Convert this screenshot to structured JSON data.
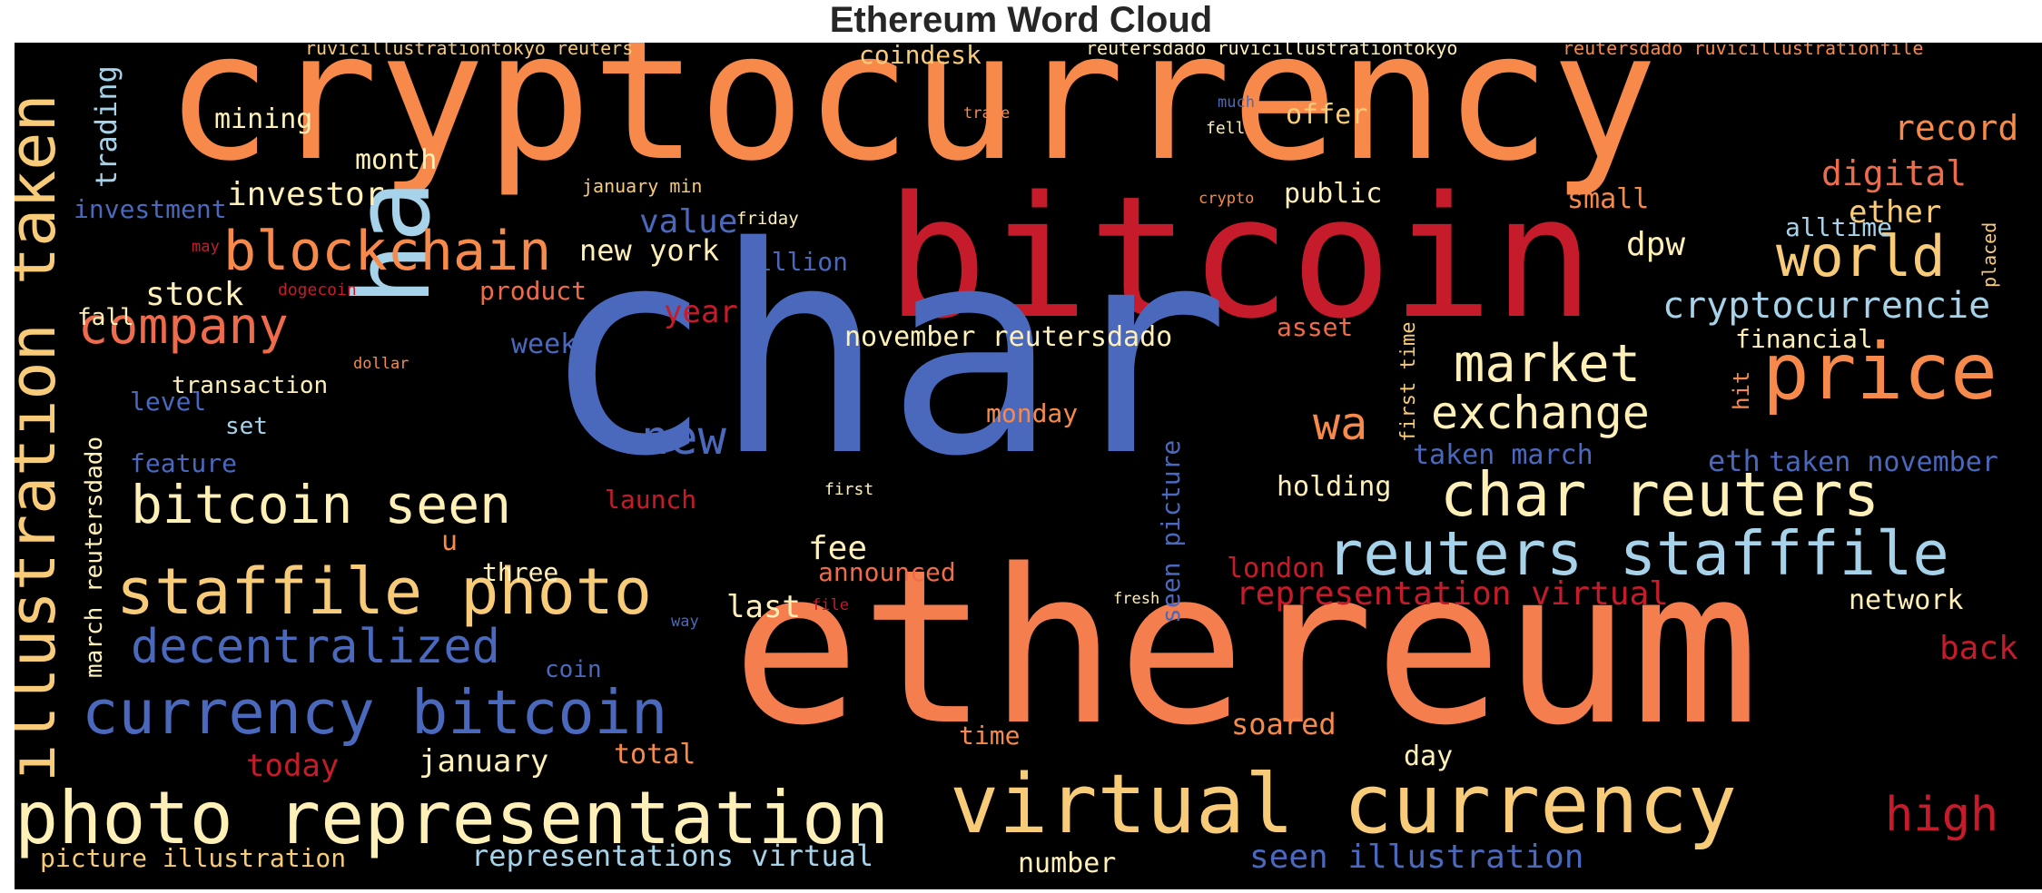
{
  "title": "Ethereum Word Cloud",
  "colors": {
    "background": "#000000",
    "palette": [
      "#4a69bd",
      "#a6d3ea",
      "#fff0b8",
      "#f7cb78",
      "#f78a4b",
      "#ee6b4b",
      "#c51b2a"
    ]
  },
  "words": [
    {
      "text": "cryptocurrency",
      "color": "#f78a4b"
    },
    {
      "text": "bitcoin",
      "color": "#c51b2a"
    },
    {
      "text": "char",
      "color": "#4a69bd"
    },
    {
      "text": "ethereum",
      "color": "#f57e4e"
    },
    {
      "text": "ha",
      "color": "#a6d3ea"
    },
    {
      "text": "illustration taken",
      "color": "#f7cb78"
    },
    {
      "text": "photo representation",
      "color": "#fff0b8"
    },
    {
      "text": "virtual currency",
      "color": "#f7cb78"
    },
    {
      "text": "staffile photo",
      "color": "#f7cb78"
    },
    {
      "text": "currency bitcoin",
      "color": "#4a69bd"
    },
    {
      "text": "reuters stafffile",
      "color": "#a6d3ea"
    },
    {
      "text": "char reuters",
      "color": "#fff0b8"
    },
    {
      "text": "price",
      "color": "#f78a4b"
    },
    {
      "text": "blockchain",
      "color": "#f78a4b"
    },
    {
      "text": "company",
      "color": "#ee6b4b"
    },
    {
      "text": "bitcoin seen",
      "color": "#fff0b8"
    },
    {
      "text": "decentralized",
      "color": "#4a69bd"
    },
    {
      "text": "world",
      "color": "#f7cb78"
    },
    {
      "text": "market",
      "color": "#fff0b8"
    },
    {
      "text": "exchange",
      "color": "#fff0b8"
    },
    {
      "text": "wa",
      "color": "#f78a4b"
    },
    {
      "text": "new",
      "color": "#4a69bd"
    },
    {
      "text": "cryptocurrencie",
      "color": "#a6d3ea"
    },
    {
      "text": "high",
      "color": "#c51b2a"
    },
    {
      "text": "representation virtual",
      "color": "#c51b2a"
    },
    {
      "text": "seen illustration",
      "color": "#4a69bd"
    },
    {
      "text": "representations virtual",
      "color": "#a6d3ea"
    },
    {
      "text": "picture illustration",
      "color": "#f7cb78"
    },
    {
      "text": "march reutersdado",
      "color": "#fff0b8"
    },
    {
      "text": "investor",
      "color": "#fff0b8"
    },
    {
      "text": "stock",
      "color": "#fff0b8"
    },
    {
      "text": "record",
      "color": "#f78a4b"
    },
    {
      "text": "digital",
      "color": "#ee6b4b"
    },
    {
      "text": "ether",
      "color": "#f7cb78"
    },
    {
      "text": "dpw",
      "color": "#fff0b8"
    },
    {
      "text": "trading",
      "color": "#a6d3ea"
    },
    {
      "text": "eth",
      "color": "#4a69bd"
    },
    {
      "text": "taken november",
      "color": "#4a69bd"
    },
    {
      "text": "taken march",
      "color": "#4a69bd"
    },
    {
      "text": "november reutersdado",
      "color": "#fff0b8"
    },
    {
      "text": "new york",
      "color": "#fff0b8"
    },
    {
      "text": "value",
      "color": "#4a69bd"
    },
    {
      "text": "january",
      "color": "#fff0b8"
    },
    {
      "text": "today",
      "color": "#c51b2a"
    },
    {
      "text": "total",
      "color": "#f78a4b"
    },
    {
      "text": "last",
      "color": "#fff0b8"
    },
    {
      "text": "fee",
      "color": "#fff0b8"
    },
    {
      "text": "year",
      "color": "#c51b2a"
    },
    {
      "text": "back",
      "color": "#c51b2a"
    },
    {
      "text": "mining",
      "color": "#fff0b8"
    },
    {
      "text": "month",
      "color": "#fff0b8"
    },
    {
      "text": "investment",
      "color": "#4a69bd"
    },
    {
      "text": "coindesk",
      "color": "#f7cb78"
    },
    {
      "text": "offer",
      "color": "#f7cb78"
    },
    {
      "text": "public",
      "color": "#fff0b8"
    },
    {
      "text": "small",
      "color": "#f78a4b"
    },
    {
      "text": "alltime",
      "color": "#a6d3ea"
    },
    {
      "text": "financial",
      "color": "#fff0b8"
    },
    {
      "text": "holding",
      "color": "#fff0b8"
    },
    {
      "text": "network",
      "color": "#fff0b8"
    },
    {
      "text": "london",
      "color": "#c51b2a"
    },
    {
      "text": "announced",
      "color": "#ee6b4b"
    },
    {
      "text": "three",
      "color": "#fff0b8"
    },
    {
      "text": "u",
      "color": "#f78a4b"
    },
    {
      "text": "launch",
      "color": "#c51b2a"
    },
    {
      "text": "feature",
      "color": "#4a69bd"
    },
    {
      "text": "level",
      "color": "#4a69bd"
    },
    {
      "text": "set",
      "color": "#a6d3ea"
    },
    {
      "text": "transaction",
      "color": "#fff0b8"
    },
    {
      "text": "fall",
      "color": "#fff0b8"
    },
    {
      "text": "week",
      "color": "#4a69bd"
    },
    {
      "text": "product",
      "color": "#ee6b4b"
    },
    {
      "text": "billion",
      "color": "#4a69bd"
    },
    {
      "text": "monday",
      "color": "#f78a4b"
    },
    {
      "text": "asset",
      "color": "#ee6b4b"
    },
    {
      "text": "soared",
      "color": "#f78a4b"
    },
    {
      "text": "time",
      "color": "#f78a4b"
    },
    {
      "text": "day",
      "color": "#fff0b8"
    },
    {
      "text": "number",
      "color": "#fff0b8"
    },
    {
      "text": "coin",
      "color": "#4a69bd"
    },
    {
      "text": "seen picture",
      "color": "#4a69bd"
    },
    {
      "text": "first time",
      "color": "#f7cb78"
    },
    {
      "text": "hit",
      "color": "#f78a4b"
    },
    {
      "text": "placed",
      "color": "#f7cb78"
    },
    {
      "text": "ruvicillustrationtokyo reuters",
      "color": "#f7cb78"
    },
    {
      "text": "reutersdado ruvicillustrationtokyo",
      "color": "#fff0b8"
    },
    {
      "text": "reutersdado ruvicillustrationfile",
      "color": "#f78a4b"
    },
    {
      "text": "january min",
      "color": "#f7cb78"
    },
    {
      "text": "friday",
      "color": "#fff0b8"
    },
    {
      "text": "may",
      "color": "#c51b2a"
    },
    {
      "text": "dogecoin",
      "color": "#c51b2a"
    },
    {
      "text": "dollar",
      "color": "#f78a4b"
    },
    {
      "text": "first",
      "color": "#fff0b8"
    },
    {
      "text": "fresh",
      "color": "#fff0b8"
    },
    {
      "text": "file",
      "color": "#c51b2a"
    },
    {
      "text": "way",
      "color": "#4a69bd"
    },
    {
      "text": "trade",
      "color": "#f78a4b"
    },
    {
      "text": "much",
      "color": "#4a69bd"
    },
    {
      "text": "fell",
      "color": "#fff0b8"
    },
    {
      "text": "crypto",
      "color": "#f78a4b"
    }
  ]
}
